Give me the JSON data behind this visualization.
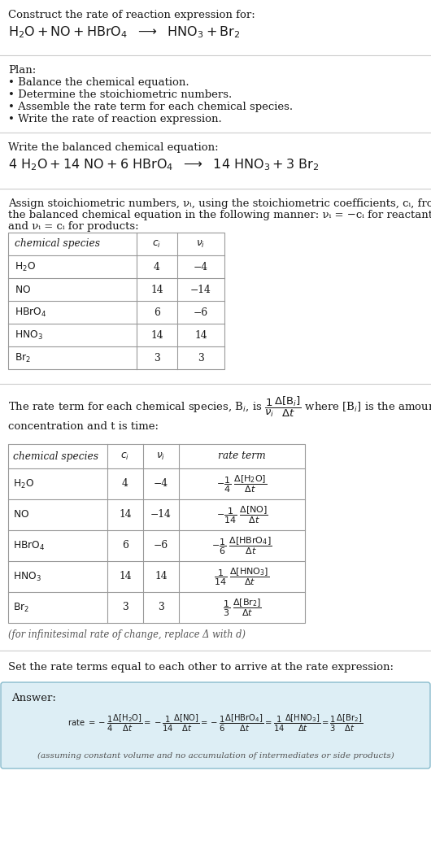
{
  "bg_color": "#ffffff",
  "text_color": "#1a1a1a",
  "gray_text": "#555555",
  "sep_color": "#cccccc",
  "table_border": "#999999",
  "answer_box_bg": "#ddeef5",
  "answer_box_border": "#88bbcc",
  "title_line": "Construct the rate of reaction expression for:",
  "plan_header": "Plan:",
  "plan_items": [
    "• Balance the chemical equation.",
    "• Determine the stoichiometric numbers.",
    "• Assemble the rate term for each chemical species.",
    "• Write the rate of reaction expression."
  ],
  "balanced_header": "Write the balanced chemical equation:",
  "assign_texts": [
    "Assign stoichiometric numbers, νᵢ, using the stoichiometric coefficients, cᵢ, from",
    "the balanced chemical equation in the following manner: νᵢ = −cᵢ for reactants",
    "and νᵢ = cᵢ for products:"
  ],
  "table1_ci": [
    "4",
    "14",
    "6",
    "14",
    "3"
  ],
  "table1_vi": [
    "−4",
    "−14",
    "−6",
    "14",
    "3"
  ],
  "table2_ci": [
    "4",
    "14",
    "6",
    "14",
    "3"
  ],
  "table2_vi": [
    "−4",
    "−14",
    "−6",
    "14",
    "3"
  ],
  "infinitesimal": "(for infinitesimal rate of change, replace Δ with d)",
  "set_equal": "Set the rate terms equal to each other to arrive at the rate expression:",
  "answer_label": "Answer:",
  "footnote": "(assuming constant volume and no accumulation of intermediates or side products)"
}
